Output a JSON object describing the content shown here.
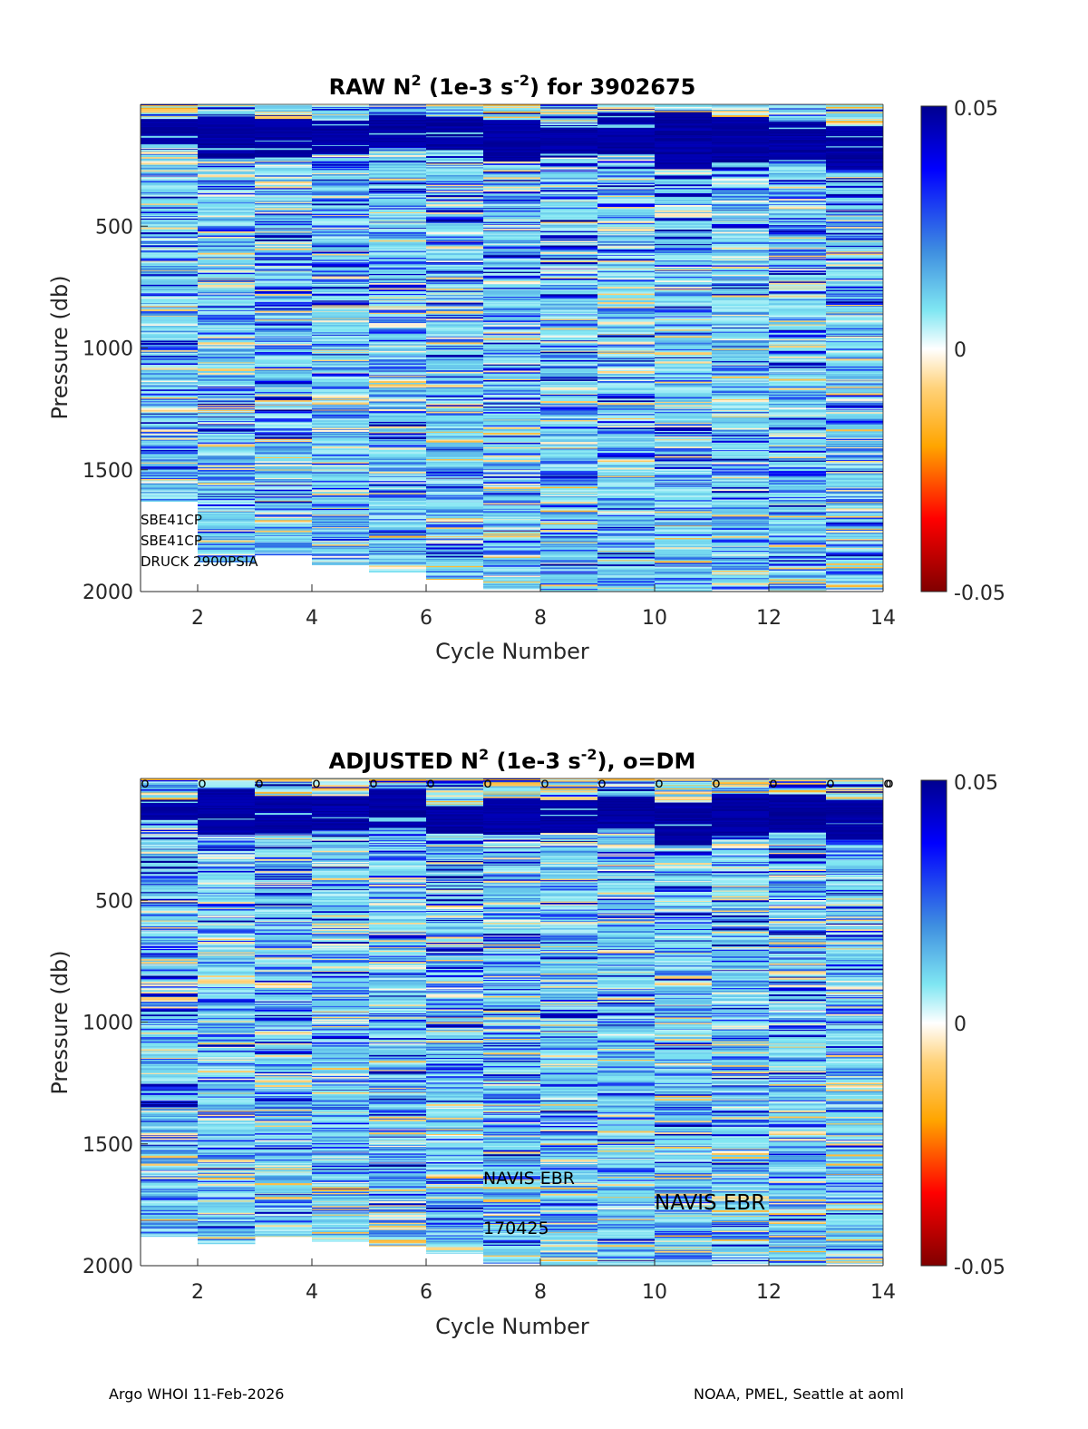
{
  "chart_data": [
    {
      "type": "heatmap",
      "title_prefix": "RAW N",
      "title_sup1": "2",
      "title_mid": " (1e-3 s",
      "title_sup2": "-2",
      "title_suffix": ") for 3902675",
      "xlabel": "Cycle Number",
      "ylabel": "Pressure (db)",
      "xlim": [
        1,
        14
      ],
      "ylim": [
        0,
        2000
      ],
      "y_reversed": true,
      "xticks": [
        2,
        4,
        6,
        8,
        10,
        12,
        14
      ],
      "yticks": [
        500,
        1000,
        1500,
        2000
      ],
      "xtick_labels": [
        "2",
        "4",
        "6",
        "8",
        "10",
        "12",
        "14"
      ],
      "ytick_labels": [
        "500",
        "1000",
        "1500",
        "2000"
      ],
      "colorbar": {
        "min": -0.05,
        "max": 0.05,
        "tick_labels": [
          "0.05",
          "0",
          "-0.05"
        ],
        "colormap": "jet_white_center"
      },
      "cycles": [
        1,
        2,
        3,
        4,
        5,
        6,
        7,
        8,
        9,
        10,
        11,
        12,
        13,
        14
      ],
      "max_pressure": [
        1630,
        1880,
        1850,
        1890,
        1920,
        1950,
        1990,
        2000,
        2000,
        2000,
        1990,
        2000,
        1990,
        1990
      ],
      "dark_layer_start": [
        60,
        40,
        55,
        60,
        45,
        50,
        60,
        85,
        40,
        30,
        50,
        65,
        85,
        110
      ],
      "dark_layer_end": [
        170,
        220,
        215,
        200,
        175,
        185,
        230,
        215,
        205,
        265,
        230,
        225,
        265,
        240
      ],
      "dm_markers": [],
      "annotations": [
        {
          "text": "SBE41CP",
          "x": 1,
          "y": 1725,
          "size": "small"
        },
        {
          "text": "SBE41CP",
          "x": 1,
          "y": 1810,
          "size": "small"
        },
        {
          "text": "DRUCK 2900PSIA",
          "x": 1,
          "y": 1895,
          "size": "small"
        }
      ]
    },
    {
      "type": "heatmap",
      "title_prefix": "ADJUSTED N",
      "title_sup1": "2",
      "title_mid": " (1e-3 s",
      "title_sup2": "-2",
      "title_suffix": "), o=DM",
      "xlabel": "Cycle Number",
      "ylabel": "Pressure (db)",
      "xlim": [
        1,
        14
      ],
      "ylim": [
        0,
        2000
      ],
      "y_reversed": true,
      "xticks": [
        2,
        4,
        6,
        8,
        10,
        12,
        14
      ],
      "yticks": [
        500,
        1000,
        1500,
        2000
      ],
      "xtick_labels": [
        "2",
        "4",
        "6",
        "8",
        "10",
        "12",
        "14"
      ],
      "ytick_labels": [
        "500",
        "1000",
        "1500",
        "2000"
      ],
      "colorbar": {
        "min": -0.05,
        "max": 0.05,
        "tick_labels": [
          "0.05",
          "0",
          "-0.05"
        ],
        "colormap": "jet_white_center"
      },
      "cycles": [
        1,
        2,
        3,
        4,
        5,
        6,
        7,
        8,
        9,
        10,
        11,
        12,
        13,
        14
      ],
      "max_pressure": [
        1880,
        1910,
        1880,
        1900,
        1920,
        1950,
        1990,
        2000,
        2000,
        2000,
        1990,
        2000,
        1990,
        1990
      ],
      "dark_layer_start": [
        80,
        40,
        70,
        70,
        40,
        110,
        80,
        85,
        70,
        100,
        60,
        65,
        85,
        130
      ],
      "dark_layer_end": [
        170,
        225,
        225,
        210,
        200,
        225,
        230,
        220,
        205,
        270,
        230,
        220,
        250,
        250
      ],
      "dm_markers": [
        1,
        2,
        3,
        4,
        5,
        6,
        7,
        8,
        9,
        10,
        11,
        12,
        13,
        14
      ],
      "dm_marker_symbol": "o",
      "annotations": [
        {
          "text": "NAVIS EBR",
          "x": 7,
          "y": 1665,
          "size": "mid"
        },
        {
          "text": "NAVIS EBR",
          "x": 10,
          "y": 1770,
          "size": "big"
        },
        {
          "text": "170425",
          "x": 7,
          "y": 1870,
          "size": "mid"
        }
      ]
    }
  ],
  "footer": {
    "left": "Argo WHOI 11-Feb-2026",
    "right": "NOAA, PMEL, Seattle at aoml"
  }
}
